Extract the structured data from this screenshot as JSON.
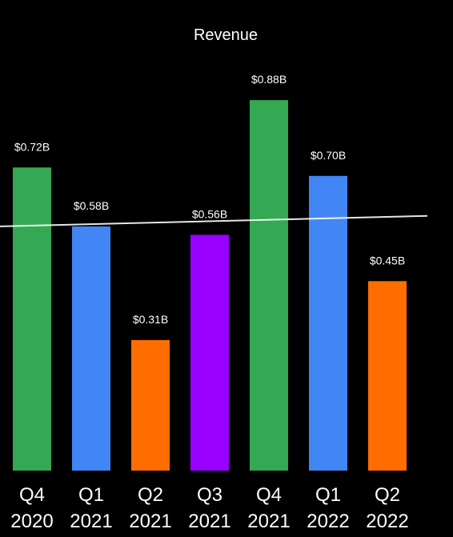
{
  "chart_data": {
    "type": "bar",
    "title": "Revenue",
    "categories": [
      [
        "Q4",
        "2020"
      ],
      [
        "Q1",
        "2021"
      ],
      [
        "Q2",
        "2021"
      ],
      [
        "Q3",
        "2021"
      ],
      [
        "Q4",
        "2021"
      ],
      [
        "Q1",
        "2022"
      ],
      [
        "Q2",
        "2022"
      ]
    ],
    "values": [
      0.72,
      0.58,
      0.31,
      0.56,
      0.88,
      0.7,
      0.45
    ],
    "value_labels": [
      "$0.72B",
      "$0.58B",
      "$0.31B",
      "$0.56B",
      "$0.88B",
      "$0.70B",
      "$0.45B"
    ],
    "bar_colors": [
      "#34a853",
      "#4285f4",
      "#ff6d01",
      "#9900ff",
      "#34a853",
      "#4285f4",
      "#ff6d01"
    ],
    "trendline": {
      "start_value": 0.58,
      "end_value": 0.605,
      "color": "#ffffff"
    },
    "ylim": [
      0,
      1.0
    ],
    "xlabel": "",
    "ylabel": "",
    "grid": false,
    "legend": "none",
    "background": "#000000"
  }
}
